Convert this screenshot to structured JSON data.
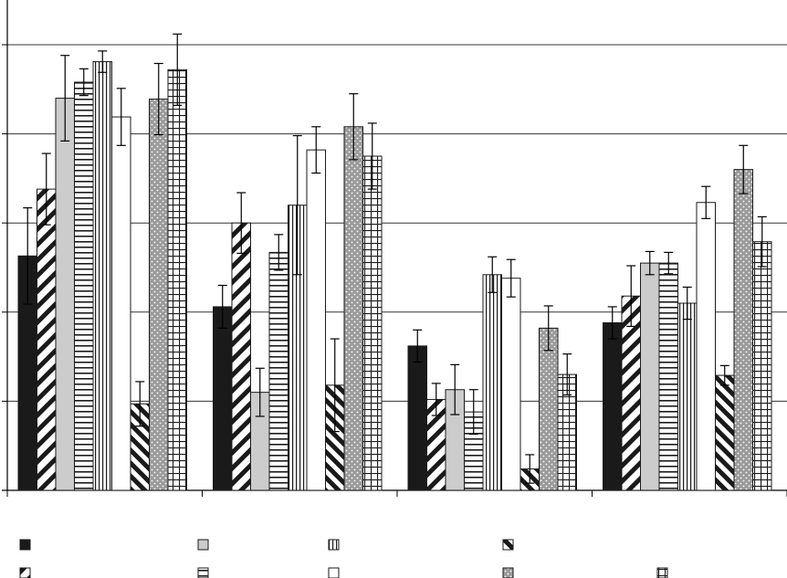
{
  "chart_data": {
    "type": "bar",
    "title": "",
    "xlabel": "",
    "ylabel": "",
    "ylim": [
      0,
      5
    ],
    "yticks": [
      0,
      1,
      2,
      3,
      4,
      5
    ],
    "grid": true,
    "legend_position": "bottom",
    "categories": [
      "",
      "",
      "",
      ""
    ],
    "series": [
      {
        "pattern": "solid-black",
        "values": [
          2.63,
          2.06,
          1.62,
          1.88
        ],
        "errors": [
          0.54,
          0.24,
          0.18,
          0.18
        ]
      },
      {
        "pattern": "diag-wide",
        "values": [
          3.38,
          3.0,
          1.02,
          2.18
        ],
        "errors": [
          0.4,
          0.34,
          0.18,
          0.34
        ]
      },
      {
        "pattern": "solid-gray",
        "values": [
          4.4,
          1.1,
          1.13,
          2.55
        ],
        "errors": [
          0.48,
          0.27,
          0.28,
          0.13
        ]
      },
      {
        "pattern": "hlines",
        "values": [
          4.58,
          2.67,
          0.88,
          2.55
        ],
        "errors": [
          0.15,
          0.2,
          0.25,
          0.12
        ]
      },
      {
        "pattern": "vlines",
        "values": [
          4.81,
          3.2,
          2.42,
          2.1
        ],
        "errors": [
          0.12,
          0.78,
          0.2,
          0.18
        ]
      },
      {
        "pattern": "white",
        "values": [
          4.19,
          3.82,
          2.38,
          3.23
        ],
        "errors": [
          0.32,
          0.26,
          0.21,
          0.18
        ]
      },
      {
        "pattern": "diag-narrow",
        "values": [
          0.97,
          1.18,
          0.24,
          1.29
        ],
        "errors": [
          0.25,
          0.52,
          0.16,
          0.11
        ]
      },
      {
        "pattern": "dotted-gray",
        "values": [
          4.39,
          4.08,
          1.82,
          3.6
        ],
        "errors": [
          0.4,
          0.37,
          0.25,
          0.27
        ]
      },
      {
        "pattern": "grid",
        "values": [
          4.72,
          3.75,
          1.3,
          2.79
        ],
        "errors": [
          0.4,
          0.37,
          0.23,
          0.28
        ]
      }
    ],
    "legend": [
      {
        "pattern": "solid-black",
        "label": ""
      },
      {
        "pattern": "solid-gray",
        "label": ""
      },
      {
        "pattern": "vlines",
        "label": ""
      },
      {
        "pattern": "diag-narrow",
        "label": ""
      },
      {
        "pattern": "diag-wide",
        "label": ""
      },
      {
        "pattern": "hlines",
        "label": ""
      },
      {
        "pattern": "white",
        "label": ""
      },
      {
        "pattern": "dotted-gray",
        "label": ""
      },
      {
        "pattern": "grid",
        "label": ""
      }
    ],
    "colors": {
      "black": "#1a1a1a",
      "gray": "#cccccc",
      "dot_gray": "#9a9a9a",
      "grid_line": "#333333"
    }
  }
}
